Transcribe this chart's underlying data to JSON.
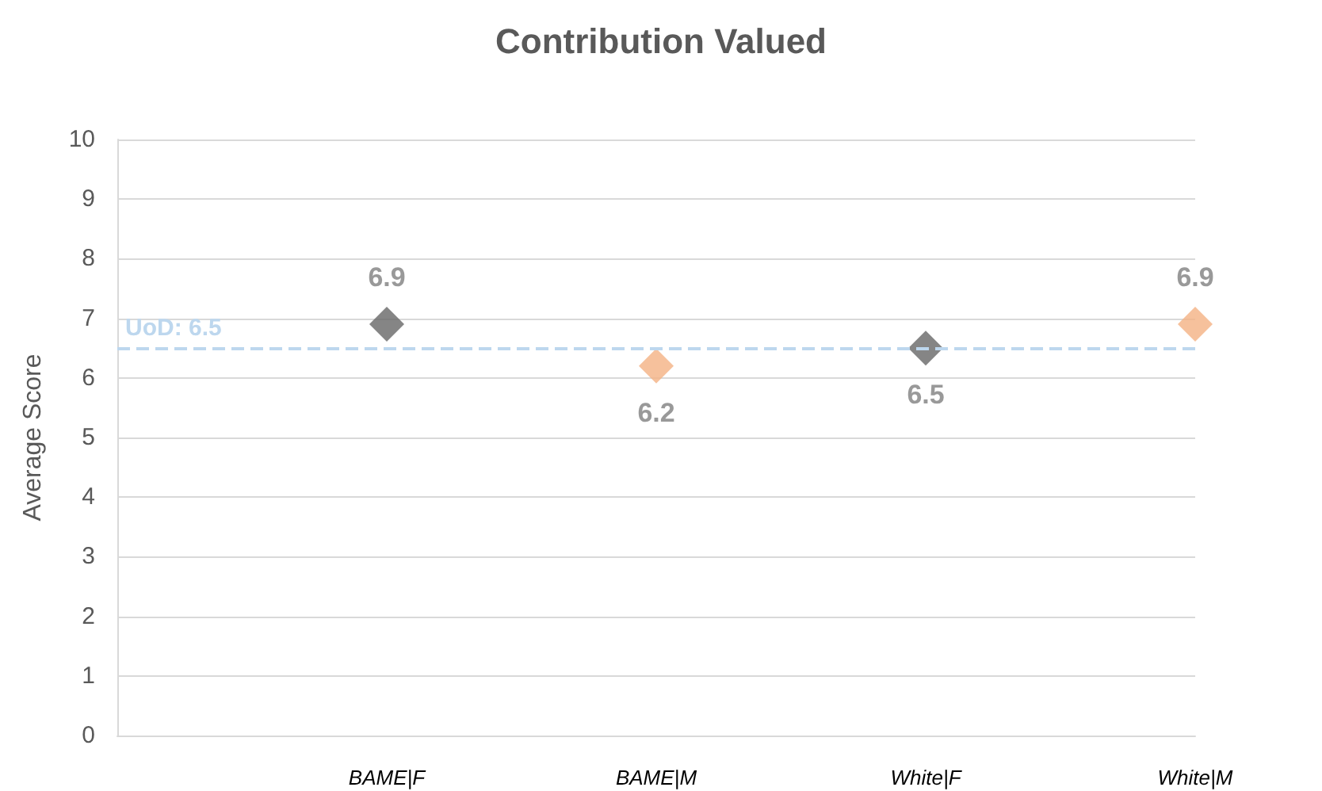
{
  "chart_data": {
    "type": "scatter",
    "title": "Contribution Valued",
    "ylabel": "Average Score",
    "categories": [
      null,
      "BAME|F",
      "BAME|M",
      "White|F",
      "White|M"
    ],
    "values": [
      null,
      6.9,
      6.2,
      6.5,
      6.9
    ],
    "colors": [
      "#666666",
      "#666666",
      "#f4b183",
      "#666666",
      "#f4b183"
    ],
    "ylim": [
      0,
      10
    ],
    "yticks": [
      0,
      1,
      2,
      3,
      4,
      5,
      6,
      7,
      8,
      9,
      10
    ],
    "grid": "y",
    "marker": "diamond",
    "data_labels": true,
    "ref_lines": [
      {
        "axis": "y",
        "value": 6.5,
        "label": "UoD: 6.5",
        "color": "#bdd7ee",
        "line_style": "dashed"
      }
    ]
  }
}
